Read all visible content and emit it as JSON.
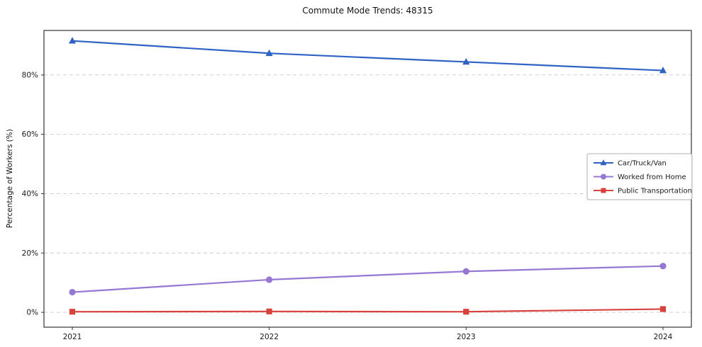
{
  "chart_data": {
    "type": "line",
    "title": "Commute Mode Trends: 48315",
    "xlabel": "",
    "ylabel": "Percentage of Workers (%)",
    "categories": [
      "2021",
      "2022",
      "2023",
      "2024"
    ],
    "series": [
      {
        "name": "Car/Truck/Van",
        "values": [
          91.5,
          87.3,
          84.4,
          81.5
        ],
        "color": "#2e62c4",
        "marker": "triangle"
      },
      {
        "name": "Worked from Home",
        "values": [
          6.8,
          11.0,
          13.8,
          15.6
        ],
        "color": "#9678d4",
        "marker": "circle"
      },
      {
        "name": "Public Transportation",
        "values": [
          0.2,
          0.3,
          0.2,
          1.1
        ],
        "color": "#d9413d",
        "marker": "square"
      }
    ],
    "ylim": [
      -5,
      95
    ],
    "yticks": [
      0,
      20,
      40,
      60,
      80
    ],
    "ytick_suffix": "%",
    "grid": "horizontal-dashed",
    "legend_position": "right-middle"
  }
}
